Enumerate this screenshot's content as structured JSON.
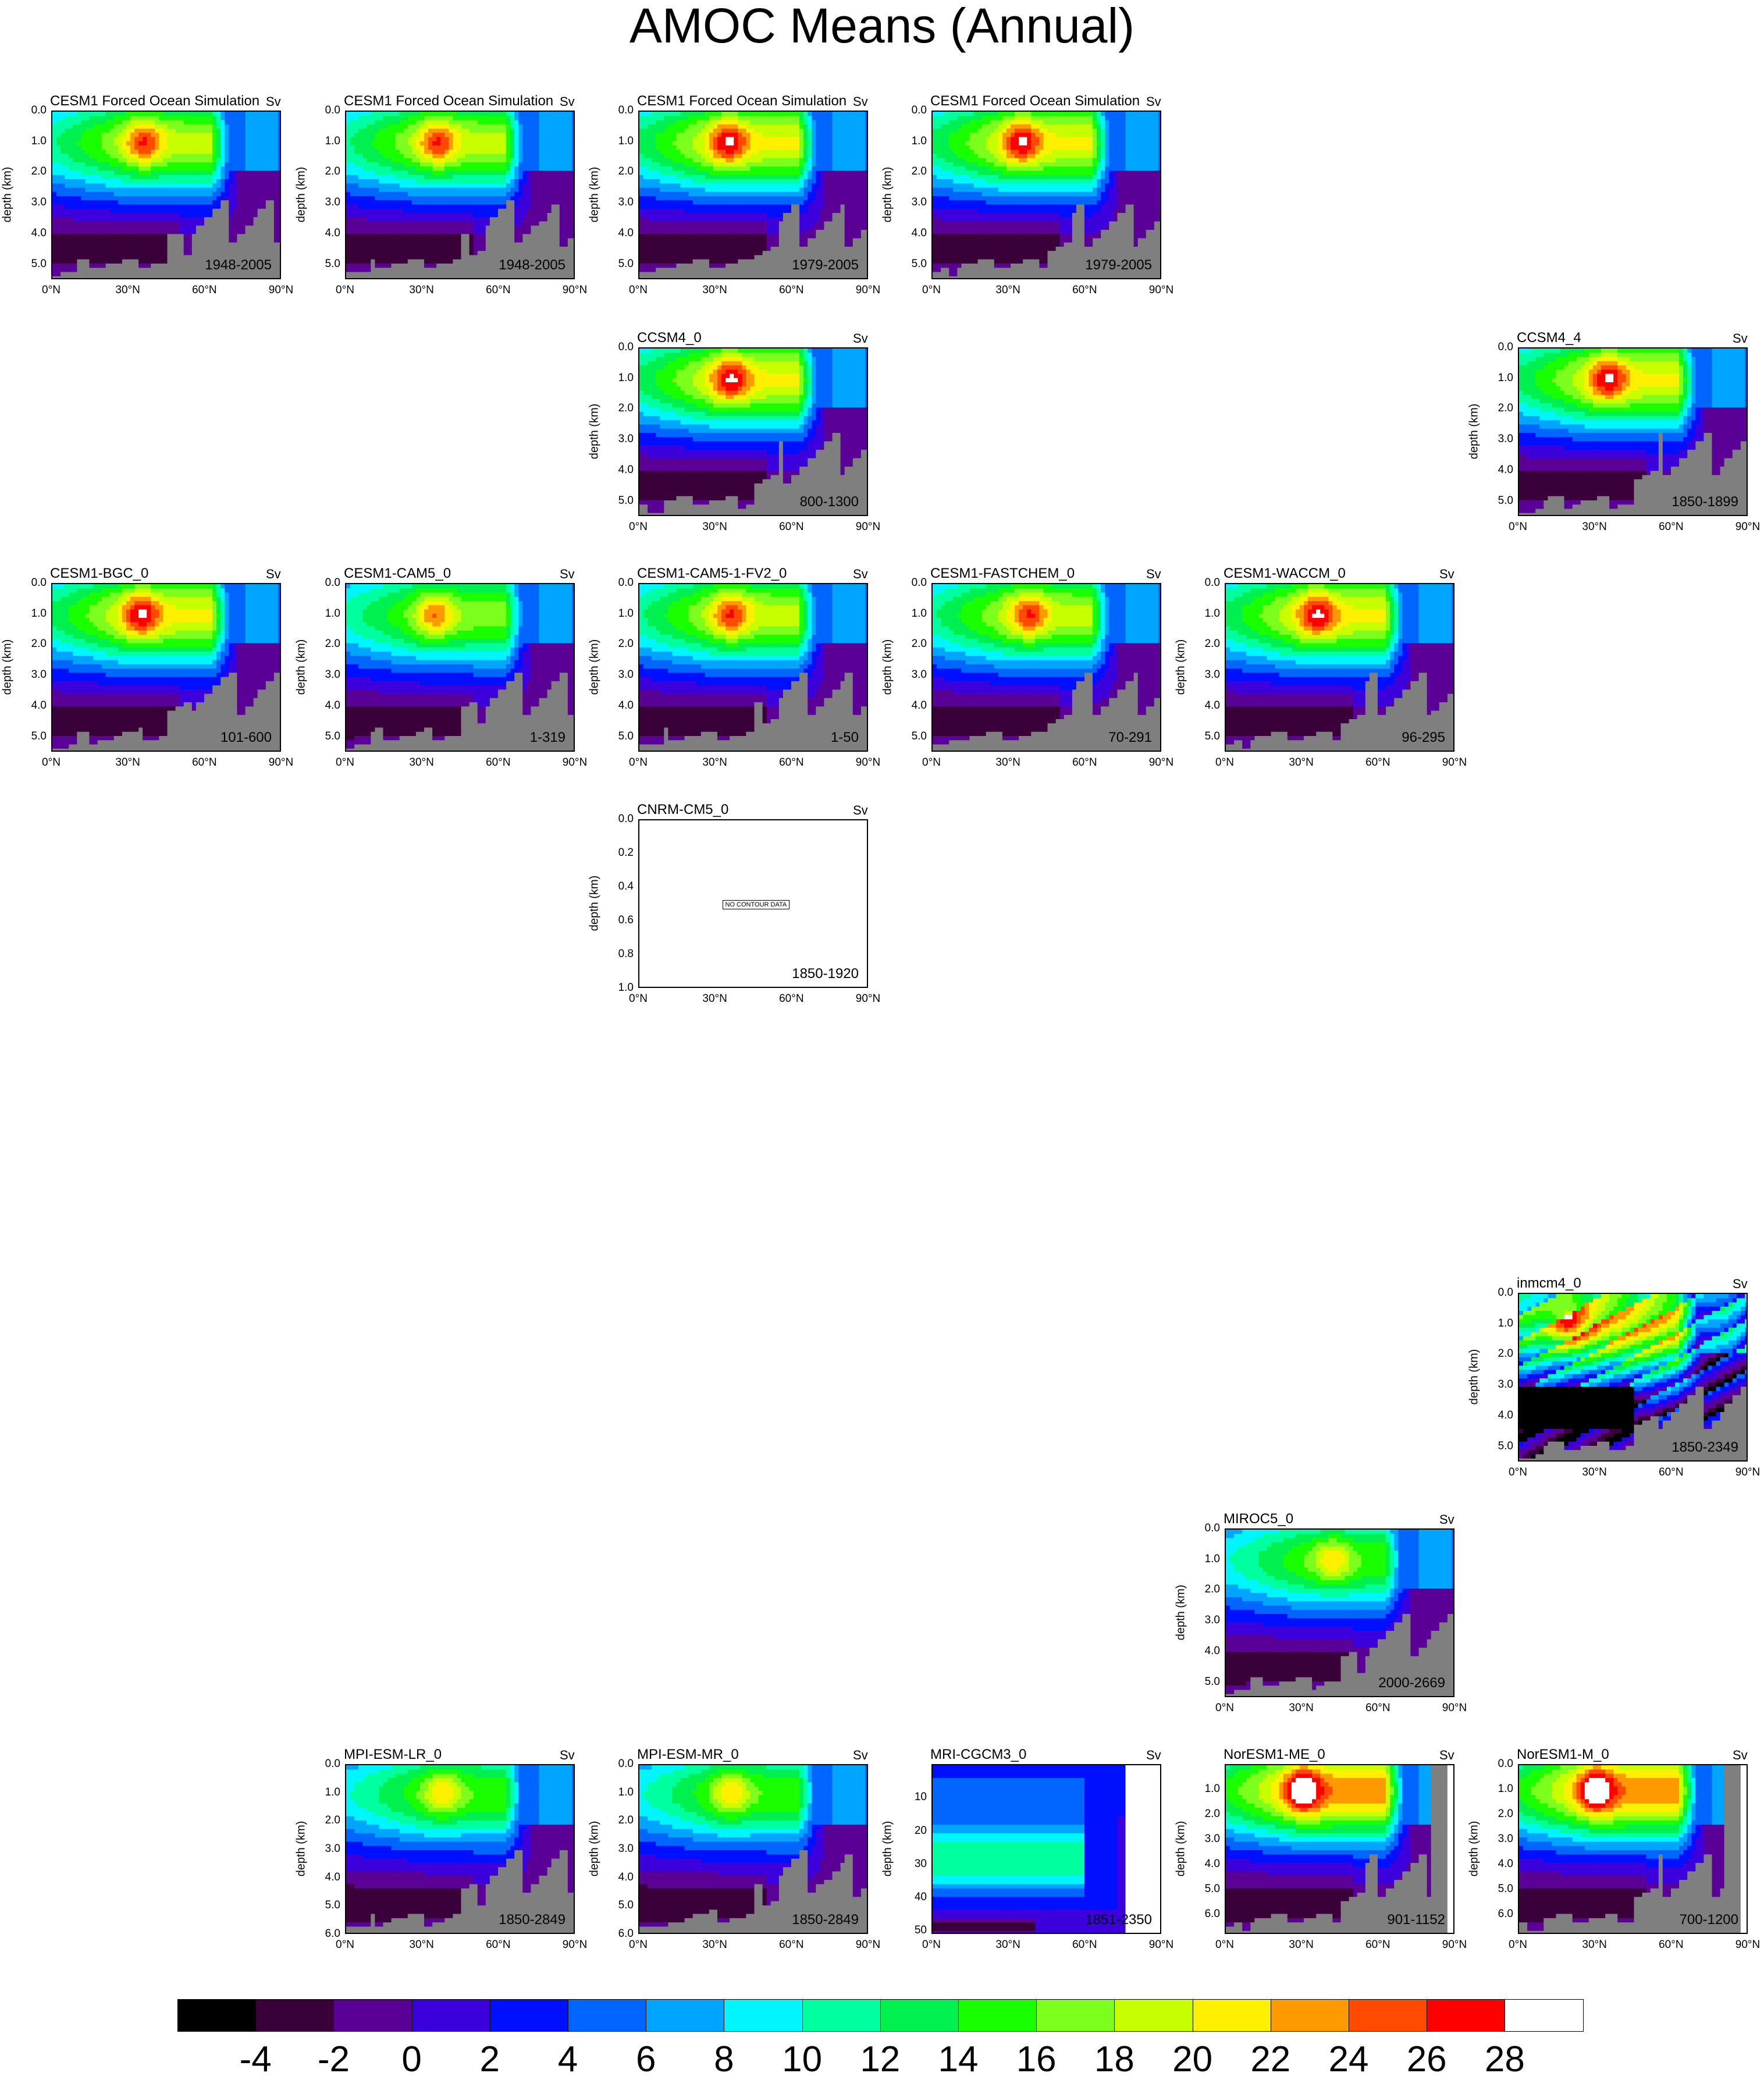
{
  "title": "AMOC Means (Annual)",
  "chart_data": {
    "type": "heatmap",
    "variable_units": "Sv",
    "xlabel": "",
    "ylabel": "depth (km)",
    "xlim": [
      0,
      90
    ],
    "x_tick_labels": [
      "0°N",
      "30°N",
      "60°N",
      "90°N"
    ],
    "colorbar": {
      "labels": [
        "-4",
        "-2",
        "0",
        "2",
        "4",
        "6",
        "8",
        "10",
        "12",
        "14",
        "16",
        "18",
        "20",
        "22",
        "24",
        "26",
        "28"
      ],
      "levels": [
        -4,
        -2,
        0,
        2,
        4,
        6,
        8,
        10,
        12,
        14,
        16,
        18,
        20,
        22,
        24,
        26,
        28
      ],
      "colors": [
        "#000000",
        "#3a003a",
        "#5b0096",
        "#3c00dc",
        "#0010ff",
        "#0066ff",
        "#00a5ff",
        "#00f5ff",
        "#00ff9e",
        "#00f050",
        "#19ff00",
        "#7cff1c",
        "#c8ff00",
        "#fff000",
        "#ff9900",
        "#ff4a00",
        "#ff0000",
        "#ffffff"
      ]
    },
    "panels": [
      {
        "name": "CESM1 Forced Ocean Simulation",
        "unit": "Sv",
        "period": "1948-2005",
        "y_ticks": [
          "0.0",
          "1.0",
          "2.0",
          "3.0",
          "4.0",
          "5.0"
        ],
        "ylim": [
          0,
          5.5
        ],
        "max_sv": 24,
        "core_lat": 36,
        "core_depth": 1.0
      },
      {
        "name": "CESM1 Forced Ocean Simulation",
        "unit": "Sv",
        "period": "1948-2005",
        "y_ticks": [
          "0.0",
          "1.0",
          "2.0",
          "3.0",
          "4.0",
          "5.0"
        ],
        "ylim": [
          0,
          5.5
        ],
        "max_sv": 24,
        "core_lat": 36,
        "core_depth": 1.0
      },
      {
        "name": "CESM1 Forced Ocean Simulation",
        "unit": "Sv",
        "period": "1979-2005",
        "y_ticks": [
          "0.0",
          "1.0",
          "2.0",
          "3.0",
          "4.0",
          "5.0"
        ],
        "ylim": [
          0,
          5.5
        ],
        "max_sv": 26,
        "core_lat": 35,
        "core_depth": 1.0
      },
      {
        "name": "CESM1 Forced Ocean Simulation",
        "unit": "Sv",
        "period": "1979-2005",
        "y_ticks": [
          "0.0",
          "1.0",
          "2.0",
          "3.0",
          "4.0",
          "5.0"
        ],
        "ylim": [
          0,
          5.5
        ],
        "max_sv": 26,
        "core_lat": 35,
        "core_depth": 1.0
      },
      {
        "name": "CCSM4_0",
        "unit": "Sv",
        "period": "800-1300",
        "y_ticks": [
          "0.0",
          "1.0",
          "2.0",
          "3.0",
          "4.0",
          "5.0"
        ],
        "ylim": [
          0,
          5.5
        ],
        "max_sv": 26,
        "core_lat": 36,
        "core_depth": 1.0
      },
      {
        "name": "CCSM4_4",
        "unit": "Sv",
        "period": "1850-1899",
        "y_ticks": [
          "0.0",
          "1.0",
          "2.0",
          "3.0",
          "4.0",
          "5.0"
        ],
        "ylim": [
          0,
          5.5
        ],
        "max_sv": 26,
        "core_lat": 35,
        "core_depth": 1.0
      },
      {
        "name": "CESM1-BGC_0",
        "unit": "Sv",
        "period": "101-600",
        "y_ticks": [
          "0.0",
          "1.0",
          "2.0",
          "3.0",
          "4.0",
          "5.0"
        ],
        "ylim": [
          0,
          5.5
        ],
        "max_sv": 26,
        "core_lat": 35,
        "core_depth": 1.0
      },
      {
        "name": "CESM1-CAM5_0",
        "unit": "Sv",
        "period": "1-319",
        "y_ticks": [
          "0.0",
          "1.0",
          "2.0",
          "3.0",
          "4.0",
          "5.0"
        ],
        "ylim": [
          0,
          5.5
        ],
        "max_sv": 22,
        "core_lat": 35,
        "core_depth": 1.0
      },
      {
        "name": "CESM1-CAM5-1-FV2_0",
        "unit": "Sv",
        "period": "1-50",
        "y_ticks": [
          "0.0",
          "1.0",
          "2.0",
          "3.0",
          "4.0",
          "5.0"
        ],
        "ylim": [
          0,
          5.5
        ],
        "max_sv": 24,
        "core_lat": 36,
        "core_depth": 1.0
      },
      {
        "name": "CESM1-FASTCHEM_0",
        "unit": "Sv",
        "period": "70-291",
        "y_ticks": [
          "0.0",
          "1.0",
          "2.0",
          "3.0",
          "4.0",
          "5.0"
        ],
        "ylim": [
          0,
          5.5
        ],
        "max_sv": 24,
        "core_lat": 38,
        "core_depth": 1.0
      },
      {
        "name": "CESM1-WACCM_0",
        "unit": "Sv",
        "period": "96-295",
        "y_ticks": [
          "0.0",
          "1.0",
          "2.0",
          "3.0",
          "4.0",
          "5.0"
        ],
        "ylim": [
          0,
          5.5
        ],
        "max_sv": 26,
        "core_lat": 36,
        "core_depth": 1.0
      },
      {
        "name": "CNRM-CM5_0",
        "unit": "Sv",
        "period": "1850-1920",
        "y_ticks": [
          "0.0",
          "0.2",
          "0.4",
          "0.6",
          "0.8",
          "1.0"
        ],
        "ylim": [
          0,
          1.0
        ],
        "no_data": "NO CONTOUR DATA"
      },
      {
        "name": "inmcm4_0",
        "unit": "Sv",
        "period": "1850-2349",
        "y_ticks": [
          "0.0",
          "1.0",
          "2.0",
          "3.0",
          "4.0",
          "5.0"
        ],
        "ylim": [
          0,
          5.5
        ],
        "max_sv": 26,
        "core_lat": 20,
        "core_depth": 1.0
      },
      {
        "name": "MIROC5_0",
        "unit": "Sv",
        "period": "2000-2669",
        "y_ticks": [
          "0.0",
          "1.0",
          "2.0",
          "3.0",
          "4.0",
          "5.0"
        ],
        "ylim": [
          0,
          5.5
        ],
        "max_sv": 20,
        "core_lat": 42,
        "core_depth": 1.0
      },
      {
        "name": "MPI-ESM-LR_0",
        "unit": "Sv",
        "period": "1850-2849",
        "y_ticks": [
          "0.0",
          "1.0",
          "2.0",
          "3.0",
          "4.0",
          "5.0",
          "6.0"
        ],
        "ylim": [
          0,
          6.0
        ],
        "max_sv": 20,
        "core_lat": 38,
        "core_depth": 1.0
      },
      {
        "name": "MPI-ESM-MR_0",
        "unit": "Sv",
        "period": "1850-2849",
        "y_ticks": [
          "0.0",
          "1.0",
          "2.0",
          "3.0",
          "4.0",
          "5.0",
          "6.0"
        ],
        "ylim": [
          0,
          6.0
        ],
        "max_sv": 20,
        "core_lat": 36,
        "core_depth": 1.0
      },
      {
        "name": "MRI-CGCM3_0",
        "unit": "Sv",
        "period": "1851-2350",
        "y_ticks": [
          "10",
          "20",
          "30",
          "40",
          "50"
        ],
        "ylim": [
          0,
          51
        ],
        "max_sv": 14,
        "core_lat": 45,
        "core_depth": 30
      },
      {
        "name": "NorESM1-ME_0",
        "unit": "Sv",
        "period": "901-1152",
        "y_ticks": [
          "1.0",
          "2.0",
          "3.0",
          "4.0",
          "5.0",
          "6.0"
        ],
        "ylim": [
          0,
          6.8
        ],
        "max_sv": 30,
        "core_lat": 30,
        "core_depth": 1.0
      },
      {
        "name": "NorESM1-M_0",
        "unit": "Sv",
        "period": "700-1200",
        "y_ticks": [
          "0.0",
          "1.0",
          "2.0",
          "3.0",
          "4.0",
          "5.0",
          "6.0"
        ],
        "ylim": [
          0,
          6.8
        ],
        "max_sv": 30,
        "core_lat": 30,
        "core_depth": 1.0
      }
    ]
  }
}
